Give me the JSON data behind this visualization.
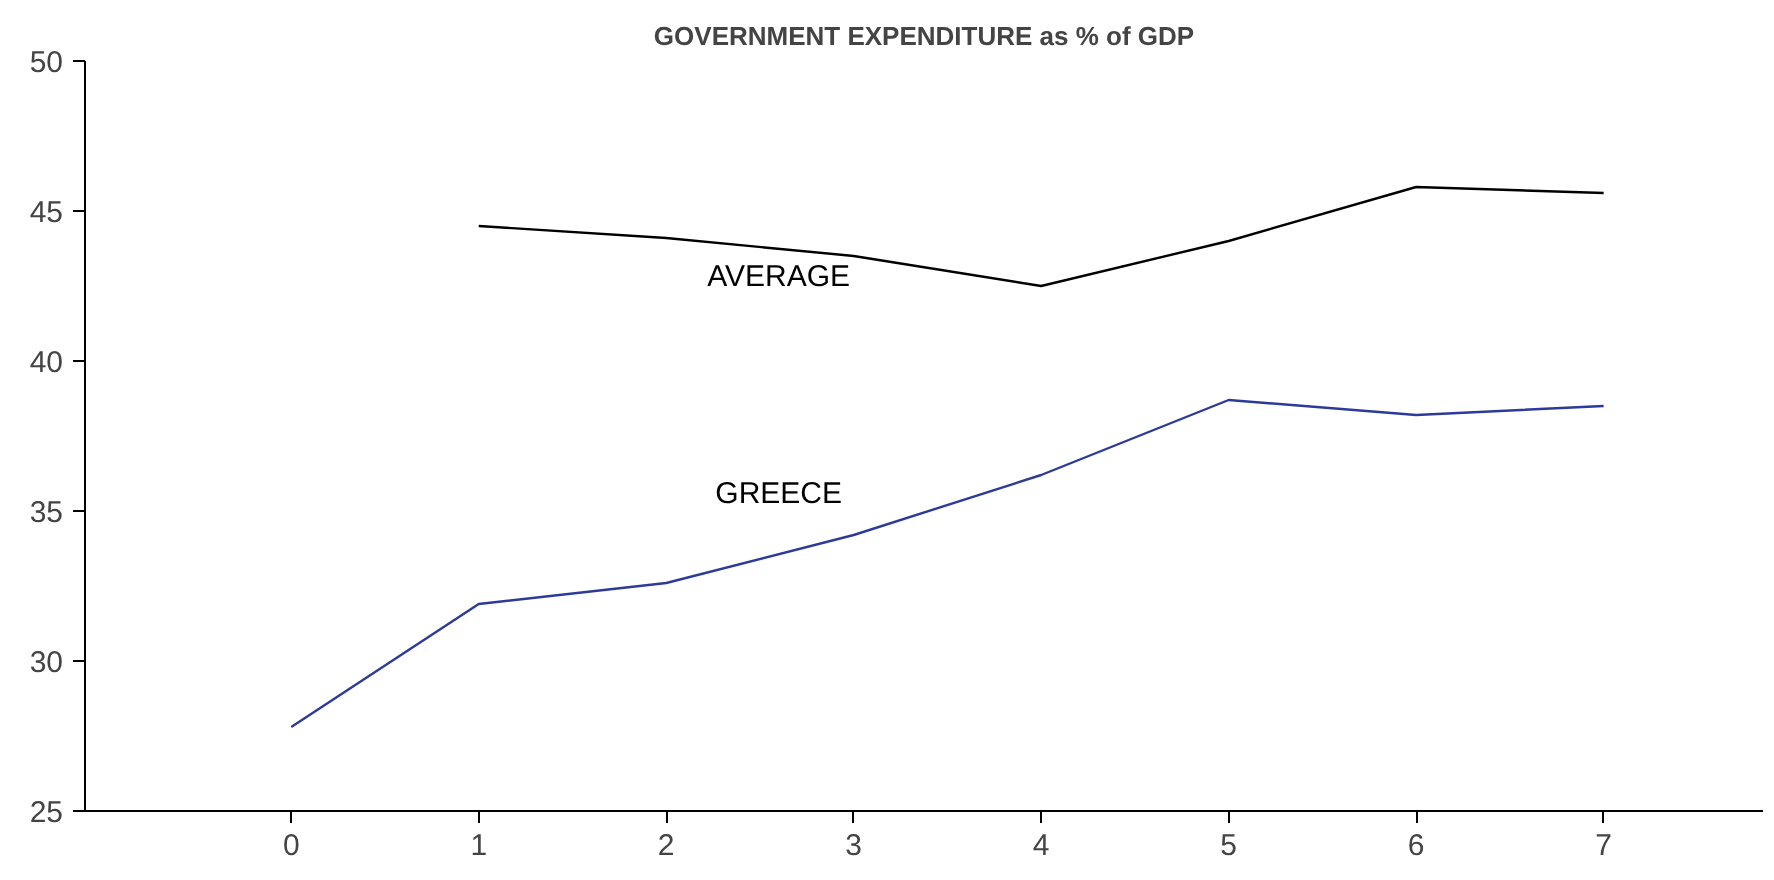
{
  "chart_data": {
    "type": "line",
    "title": "GOVERNMENT EXPENDITURE as % of GDP",
    "series": [
      {
        "name": "AVERAGE",
        "color": "#000000",
        "x": [
          1,
          2,
          3,
          4,
          5,
          6,
          7
        ],
        "values": [
          44.5,
          44.1,
          43.5,
          42.5,
          44.0,
          45.8,
          45.6
        ]
      },
      {
        "name": "GREECE",
        "color": "#2b3a9b",
        "x": [
          0,
          1,
          2,
          3,
          4,
          5,
          6,
          7
        ],
        "values": [
          27.8,
          31.9,
          32.6,
          34.2,
          36.2,
          38.7,
          38.2,
          38.5
        ]
      }
    ],
    "xlim": [
      -1.1,
      7.85
    ],
    "xticks": [
      0,
      1,
      2,
      3,
      4,
      5,
      6,
      7
    ],
    "ylim": [
      25,
      50
    ],
    "yticks": [
      25,
      30,
      35,
      40,
      45,
      50
    ],
    "grid": false,
    "legend": false,
    "marker": "none",
    "line_style": "solid"
  }
}
